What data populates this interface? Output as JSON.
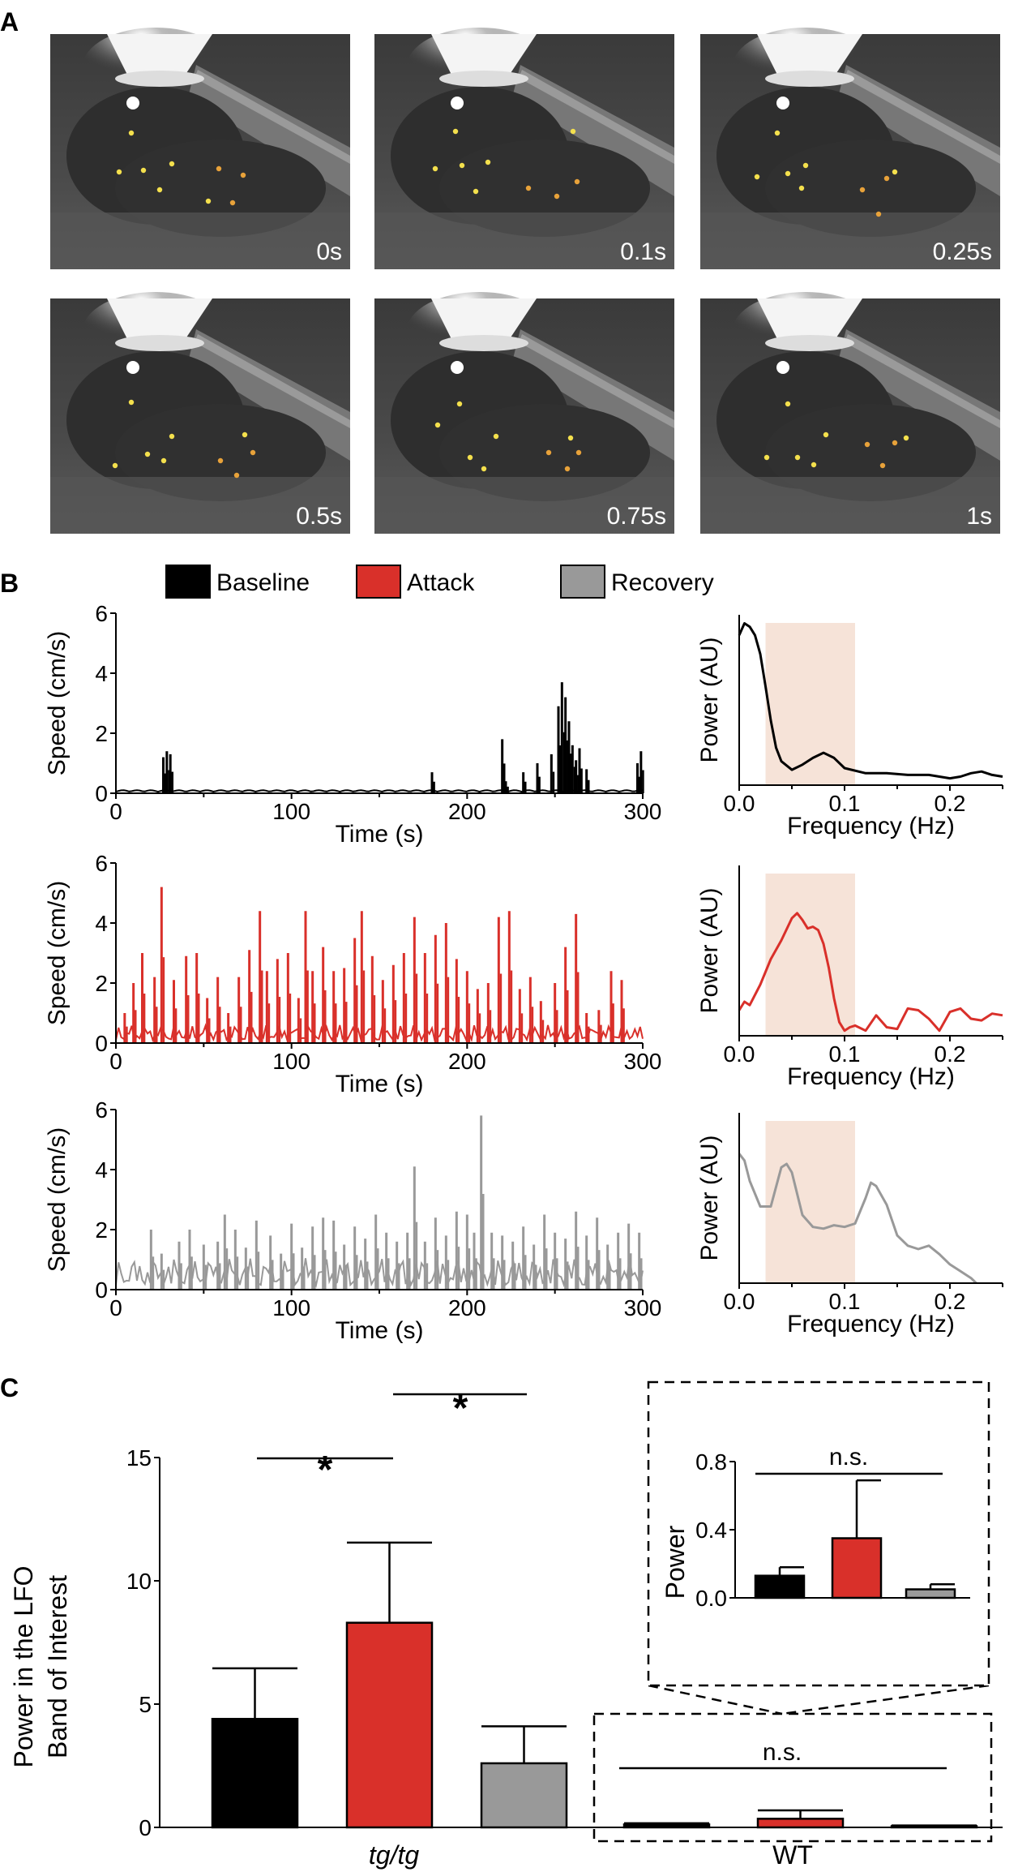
{
  "panels": {
    "a": "A",
    "b": "B",
    "c": "C"
  },
  "panel_a": {
    "frames": [
      "0s",
      "0.1s",
      "0.25s",
      "0.5s",
      "0.75s",
      "1s"
    ]
  },
  "legend": [
    {
      "label": "Baseline",
      "color": "#000000"
    },
    {
      "label": "Attack",
      "color": "#d9302a"
    },
    {
      "label": "Recovery",
      "color": "#999999"
    }
  ],
  "chart_data": [
    {
      "type": "bar",
      "title": "",
      "xlabel": "Time (s)",
      "ylabel": "Speed (cm/s)",
      "xlim": [
        0,
        300
      ],
      "ylim": [
        0,
        6
      ],
      "xticks": [
        "0",
        "100",
        "200",
        "300"
      ],
      "yticks": [
        "0",
        "2",
        "4",
        "6"
      ],
      "series": [
        {
          "values_note": "",
          "x": [
            27,
            29,
            31,
            180,
            220,
            222,
            232,
            240,
            248,
            252,
            254,
            256,
            258,
            260,
            262,
            264,
            268,
            297,
            299
          ],
          "values": [
            1.2,
            1.4,
            1.3,
            0.7,
            1.8,
            0.4,
            0.7,
            1.0,
            1.3,
            2.9,
            3.7,
            3.2,
            2.4,
            1.6,
            1.1,
            1.5,
            0.8,
            1.0,
            1.4
          ]
        }
      ],
      "color": "#000000"
    },
    {
      "type": "bar",
      "title": "",
      "xlabel": "Time (s)",
      "ylabel": "Speed (cm/s)",
      "xlim": [
        0,
        300
      ],
      "ylim": [
        0,
        6
      ],
      "xticks": [
        "0",
        "100",
        "200",
        "300"
      ],
      "yticks": [
        "0",
        "2",
        "4",
        "6"
      ],
      "series": [
        {
          "x": [
            5,
            10,
            15,
            22,
            26,
            33,
            40,
            46,
            52,
            58,
            64,
            70,
            76,
            82,
            86,
            92,
            98,
            104,
            108,
            112,
            118,
            124,
            130,
            136,
            140,
            146,
            152,
            158,
            164,
            170,
            176,
            182,
            188,
            194,
            200,
            206,
            212,
            218,
            224,
            230,
            236,
            242,
            250,
            256,
            262,
            268,
            275,
            282,
            288
          ],
          "values": [
            1.0,
            2.0,
            3.0,
            2.2,
            5.2,
            2.1,
            2.9,
            3.0,
            1.5,
            2.2,
            1.0,
            2.2,
            3.1,
            4.4,
            2.4,
            2.8,
            3.0,
            1.5,
            4.4,
            2.4,
            3.2,
            2.4,
            2.5,
            3.5,
            4.4,
            2.9,
            2.1,
            2.6,
            3.0,
            4.2,
            3.0,
            3.6,
            4.0,
            2.8,
            2.4,
            1.8,
            2.0,
            4.2,
            4.4,
            1.8,
            2.2,
            1.4,
            2.0,
            3.2,
            4.3,
            1.0,
            1.1,
            2.4,
            2.1
          ]
        }
      ],
      "color": "#d9302a"
    },
    {
      "type": "bar",
      "title": "",
      "xlabel": "Time (s)",
      "ylabel": "Speed (cm/s)",
      "xlim": [
        0,
        300
      ],
      "ylim": [
        0,
        6
      ],
      "xticks": [
        "0",
        "100",
        "200",
        "300"
      ],
      "yticks": [
        "0",
        "2",
        "4",
        "6"
      ],
      "series": [
        {
          "x": [
            20,
            26,
            36,
            42,
            50,
            58,
            62,
            68,
            74,
            80,
            88,
            94,
            100,
            106,
            112,
            118,
            124,
            130,
            136,
            142,
            148,
            154,
            160,
            166,
            170,
            176,
            182,
            188,
            194,
            200,
            204,
            208,
            214,
            220,
            226,
            232,
            238,
            244,
            250,
            256,
            262,
            268,
            274,
            280,
            286,
            292,
            298
          ],
          "values": [
            2.0,
            1.2,
            1.6,
            2.0,
            1.5,
            1.6,
            2.5,
            2.0,
            1.4,
            2.3,
            1.8,
            1.2,
            2.2,
            1.4,
            2.1,
            2.4,
            2.3,
            1.5,
            2.1,
            1.7,
            2.5,
            1.9,
            1.6,
            1.9,
            4.1,
            1.6,
            2.4,
            1.8,
            2.6,
            2.5,
            1.9,
            5.8,
            1.9,
            1.8,
            1.6,
            2.1,
            1.5,
            2.5,
            1.9,
            1.7,
            2.6,
            1.8,
            2.4,
            1.5,
            1.9,
            2.2,
            1.9
          ]
        }
      ],
      "color": "#999999"
    },
    {
      "type": "line",
      "title": "",
      "xlabel": "Frequency (Hz)",
      "ylabel": "Power (AU)",
      "xlim": [
        0,
        0.25
      ],
      "xticks": [
        "0.0",
        "0.1",
        "0.2"
      ],
      "band": [
        0.025,
        0.11
      ],
      "series": [
        {
          "x": [
            0,
            0.005,
            0.01,
            0.015,
            0.02,
            0.025,
            0.03,
            0.035,
            0.04,
            0.05,
            0.06,
            0.07,
            0.08,
            0.09,
            0.1,
            0.12,
            0.14,
            0.16,
            0.18,
            0.2,
            0.21,
            0.22,
            0.23,
            0.24,
            0.25
          ],
          "values": [
            0.88,
            0.95,
            0.93,
            0.88,
            0.77,
            0.58,
            0.38,
            0.22,
            0.14,
            0.09,
            0.12,
            0.16,
            0.19,
            0.16,
            0.1,
            0.07,
            0.07,
            0.06,
            0.06,
            0.04,
            0.05,
            0.07,
            0.08,
            0.06,
            0.05
          ]
        }
      ],
      "color": "#000000"
    },
    {
      "type": "line",
      "title": "",
      "xlabel": "Frequency (Hz)",
      "ylabel": "Power (AU)",
      "xlim": [
        0,
        0.25
      ],
      "xticks": [
        "0.0",
        "0.1",
        "0.2"
      ],
      "band": [
        0.025,
        0.11
      ],
      "series": [
        {
          "x": [
            0,
            0.005,
            0.01,
            0.02,
            0.03,
            0.04,
            0.05,
            0.055,
            0.06,
            0.065,
            0.07,
            0.075,
            0.08,
            0.085,
            0.09,
            0.095,
            0.1,
            0.105,
            0.11,
            0.12,
            0.13,
            0.14,
            0.15,
            0.16,
            0.17,
            0.18,
            0.19,
            0.2,
            0.21,
            0.22,
            0.23,
            0.24,
            0.25
          ],
          "values": [
            0.15,
            0.2,
            0.18,
            0.3,
            0.45,
            0.56,
            0.69,
            0.72,
            0.68,
            0.63,
            0.64,
            0.62,
            0.54,
            0.4,
            0.22,
            0.08,
            0.03,
            0.05,
            0.06,
            0.03,
            0.12,
            0.05,
            0.04,
            0.16,
            0.15,
            0.1,
            0.03,
            0.14,
            0.16,
            0.1,
            0.09,
            0.13,
            0.12
          ]
        }
      ],
      "color": "#d9302a"
    },
    {
      "type": "line",
      "title": "",
      "xlabel": "Frequency (Hz)",
      "ylabel": "Power (AU)",
      "xlim": [
        0,
        0.25
      ],
      "xticks": [
        "0.0",
        "0.1",
        "0.2"
      ],
      "band": [
        0.025,
        0.11
      ],
      "series": [
        {
          "x": [
            0,
            0.005,
            0.01,
            0.02,
            0.03,
            0.04,
            0.045,
            0.05,
            0.06,
            0.07,
            0.08,
            0.09,
            0.1,
            0.11,
            0.12,
            0.125,
            0.13,
            0.14,
            0.15,
            0.16,
            0.17,
            0.18,
            0.19,
            0.2,
            0.21,
            0.22,
            0.225
          ],
          "values": [
            0.76,
            0.72,
            0.6,
            0.45,
            0.45,
            0.68,
            0.7,
            0.65,
            0.4,
            0.33,
            0.32,
            0.34,
            0.33,
            0.35,
            0.5,
            0.59,
            0.57,
            0.46,
            0.28,
            0.22,
            0.2,
            0.22,
            0.17,
            0.11,
            0.07,
            0.03,
            0.0
          ]
        }
      ],
      "color": "#999999"
    },
    {
      "type": "bar",
      "title": "",
      "xlabel": "",
      "ylabel": "Power in the LFO\nBand of Interest",
      "ylim": [
        0,
        15
      ],
      "yticks": [
        "0",
        "5",
        "10",
        "15"
      ],
      "groups": [
        "tg/tg",
        "WT"
      ],
      "series": [
        {
          "name": "Baseline",
          "values": [
            4.4,
            0.12
          ],
          "err": [
            2.05,
            0.05
          ]
        },
        {
          "name": "Attack",
          "values": [
            8.3,
            0.35
          ],
          "err": [
            3.25,
            0.34
          ]
        },
        {
          "name": "Recovery",
          "values": [
            2.6,
            0.05
          ],
          "err": [
            1.5,
            0.03
          ]
        }
      ],
      "annotations": [
        "*",
        "*",
        "n.s."
      ]
    },
    {
      "type": "bar",
      "title": "",
      "xlabel": "",
      "ylabel": "Power",
      "ylim": [
        0,
        0.8
      ],
      "yticks": [
        "0.0",
        "0.4",
        "0.8"
      ],
      "series": [
        {
          "name": "Baseline",
          "values": [
            0.13
          ],
          "err": [
            0.05
          ]
        },
        {
          "name": "Attack",
          "values": [
            0.35
          ],
          "err": [
            0.34
          ]
        },
        {
          "name": "Recovery",
          "values": [
            0.05
          ],
          "err": [
            0.03
          ]
        }
      ],
      "annotations": [
        "n.s."
      ]
    }
  ]
}
